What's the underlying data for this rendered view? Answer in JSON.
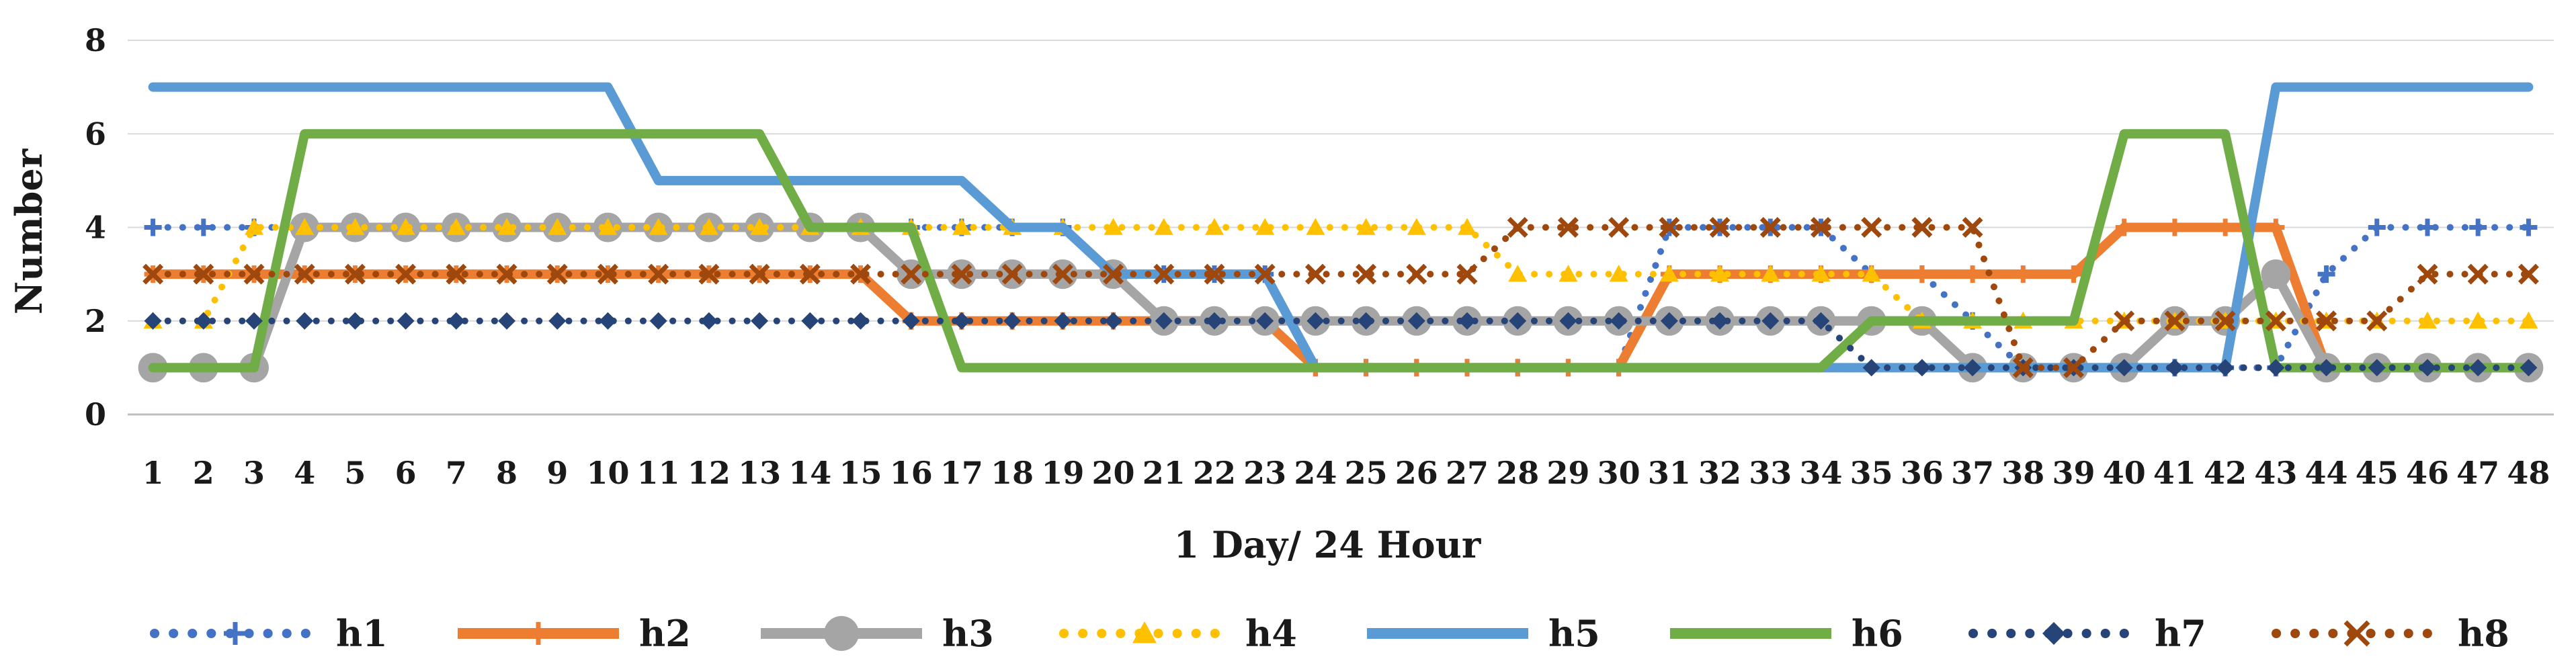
{
  "chart_data": {
    "type": "line",
    "title": "",
    "xlabel": "1 Day/ 24 Hour",
    "ylabel": "Number",
    "ylim": [
      0,
      8
    ],
    "yticks": [
      0,
      2,
      4,
      6,
      8
    ],
    "grid": "horizontal",
    "legend": "bottom",
    "x": [
      "1",
      "2",
      "3",
      "4",
      "5",
      "6",
      "7",
      "8",
      "9",
      "10",
      "11",
      "12",
      "13",
      "14",
      "15",
      "16",
      "17",
      "18",
      "19",
      "20",
      "21",
      "22",
      "23",
      "24",
      "25",
      "26",
      "27",
      "28",
      "29",
      "30",
      "31",
      "32",
      "33",
      "34",
      "35",
      "36",
      "37",
      "38",
      "39",
      "40",
      "41",
      "42",
      "43",
      "44",
      "45",
      "46",
      "47",
      "48"
    ],
    "series": [
      {
        "name": "h1",
        "color": "#4472c4",
        "style": "dotted",
        "marker": "plus",
        "values": [
          4,
          4,
          4,
          4,
          4,
          4,
          4,
          4,
          4,
          4,
          4,
          4,
          4,
          4,
          4,
          4,
          4,
          4,
          4,
          3,
          3,
          3,
          3,
          1,
          1,
          1,
          1,
          1,
          1,
          1,
          4,
          4,
          4,
          4,
          3,
          3,
          2,
          1,
          1,
          1,
          1,
          1,
          1,
          3,
          4,
          4,
          4,
          4
        ]
      },
      {
        "name": "h2",
        "color": "#ed7d31",
        "style": "solid",
        "marker": "plus",
        "values": [
          3,
          3,
          3,
          3,
          3,
          3,
          3,
          3,
          3,
          3,
          3,
          3,
          3,
          3,
          3,
          2,
          2,
          2,
          2,
          2,
          2,
          2,
          2,
          1,
          1,
          1,
          1,
          1,
          1,
          1,
          3,
          3,
          3,
          3,
          3,
          3,
          3,
          3,
          3,
          4,
          4,
          4,
          4,
          1,
          1,
          1,
          1,
          1
        ]
      },
      {
        "name": "h3",
        "color": "#a5a5a5",
        "style": "solid",
        "marker": "circle",
        "values": [
          1,
          1,
          1,
          4,
          4,
          4,
          4,
          4,
          4,
          4,
          4,
          4,
          4,
          4,
          4,
          3,
          3,
          3,
          3,
          3,
          2,
          2,
          2,
          2,
          2,
          2,
          2,
          2,
          2,
          2,
          2,
          2,
          2,
          2,
          2,
          2,
          1,
          1,
          1,
          1,
          2,
          2,
          3,
          1,
          1,
          1,
          1,
          1
        ]
      },
      {
        "name": "h4",
        "color": "#ffc000",
        "style": "dotted",
        "marker": "triangle",
        "values": [
          2,
          2,
          4,
          4,
          4,
          4,
          4,
          4,
          4,
          4,
          4,
          4,
          4,
          4,
          4,
          4,
          4,
          4,
          4,
          4,
          4,
          4,
          4,
          4,
          4,
          4,
          4,
          3,
          3,
          3,
          3,
          3,
          3,
          3,
          3,
          2,
          2,
          2,
          2,
          2,
          2,
          2,
          2,
          2,
          2,
          2,
          2,
          2
        ]
      },
      {
        "name": "h5",
        "color": "#5b9bd5",
        "style": "solid",
        "marker": "none",
        "values": [
          7,
          7,
          7,
          7,
          7,
          7,
          7,
          7,
          7,
          7,
          5,
          5,
          5,
          5,
          5,
          5,
          5,
          4,
          4,
          3,
          3,
          3,
          3,
          1,
          1,
          1,
          1,
          1,
          1,
          1,
          1,
          1,
          1,
          1,
          1,
          1,
          1,
          1,
          1,
          1,
          1,
          1,
          7,
          7,
          7,
          7,
          7,
          7
        ]
      },
      {
        "name": "h6",
        "color": "#70ad47",
        "style": "solid",
        "marker": "none",
        "values": [
          1,
          1,
          1,
          6,
          6,
          6,
          6,
          6,
          6,
          6,
          6,
          6,
          6,
          4,
          4,
          4,
          1,
          1,
          1,
          1,
          1,
          1,
          1,
          1,
          1,
          1,
          1,
          1,
          1,
          1,
          1,
          1,
          1,
          1,
          2,
          2,
          2,
          2,
          2,
          6,
          6,
          6,
          1,
          1,
          1,
          1,
          1,
          1
        ]
      },
      {
        "name": "h7",
        "color": "#264478",
        "style": "dotted",
        "marker": "diamond",
        "values": [
          2,
          2,
          2,
          2,
          2,
          2,
          2,
          2,
          2,
          2,
          2,
          2,
          2,
          2,
          2,
          2,
          2,
          2,
          2,
          2,
          2,
          2,
          2,
          2,
          2,
          2,
          2,
          2,
          2,
          2,
          2,
          2,
          2,
          2,
          1,
          1,
          1,
          1,
          1,
          1,
          1,
          1,
          1,
          1,
          1,
          1,
          1,
          1
        ]
      },
      {
        "name": "h8",
        "color": "#9e480e",
        "style": "dotted",
        "marker": "x",
        "values": [
          3,
          3,
          3,
          3,
          3,
          3,
          3,
          3,
          3,
          3,
          3,
          3,
          3,
          3,
          3,
          3,
          3,
          3,
          3,
          3,
          3,
          3,
          3,
          3,
          3,
          3,
          3,
          4,
          4,
          4,
          4,
          4,
          4,
          4,
          4,
          4,
          4,
          1,
          1,
          2,
          2,
          2,
          2,
          2,
          2,
          3,
          3,
          3
        ]
      }
    ]
  }
}
